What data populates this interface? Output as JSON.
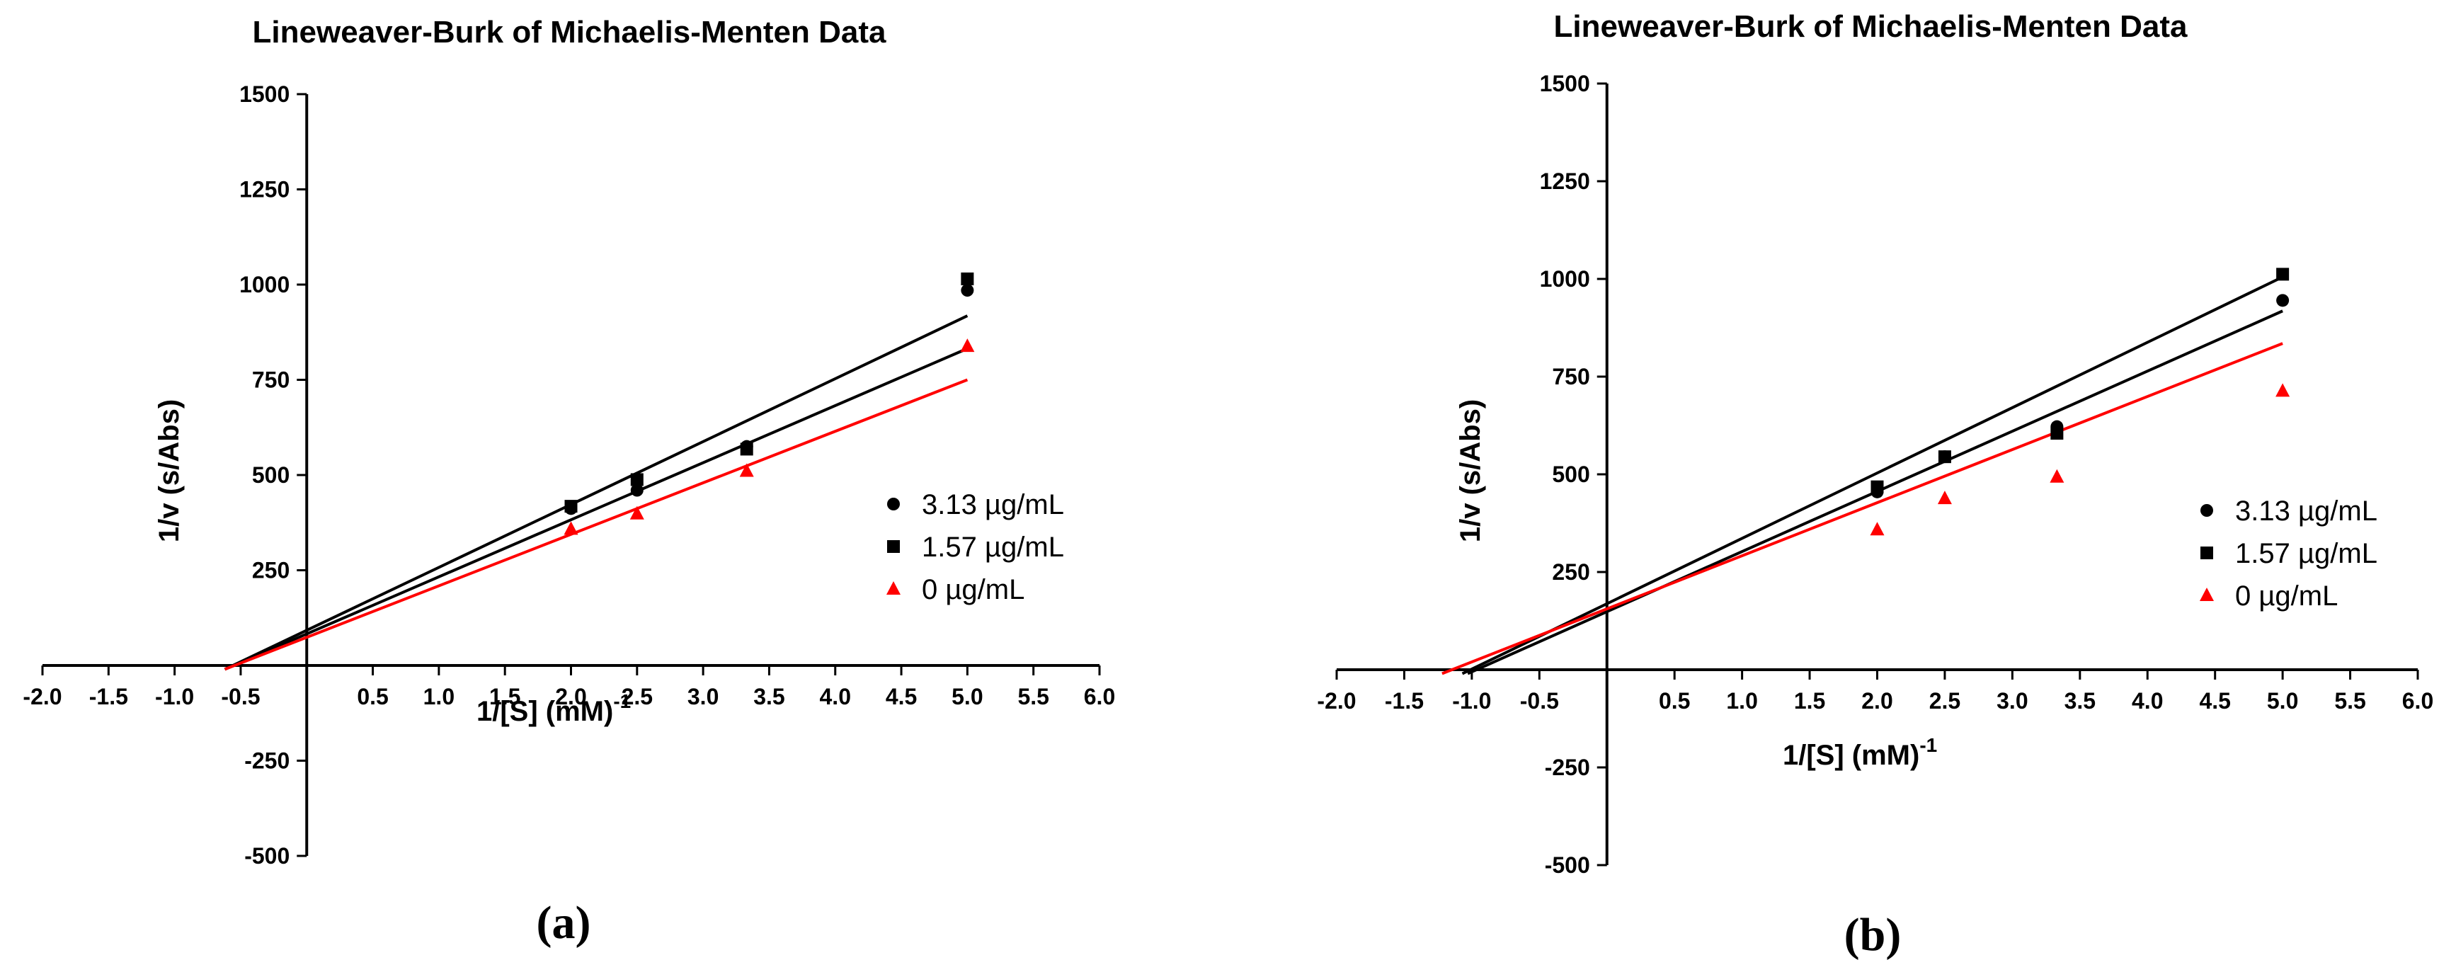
{
  "chart_data": [
    {
      "type": "scatter",
      "panel_label": "(a)",
      "title": "Lineweaver-Burk of Michaelis-Menten Data",
      "xlabel": "1/[S] (mM)",
      "xlabel_superscript": "-1",
      "ylabel": "1/v (s/Abs)",
      "xlim": [
        -2.0,
        6.0
      ],
      "ylim": [
        -500,
        1500
      ],
      "x_ticks": [
        "-2.0",
        "-1.5",
        "-1.0",
        "-0.5",
        "0.5",
        "1.0",
        "1.5",
        "2.0",
        "2.5",
        "3.0",
        "3.5",
        "4.0",
        "4.5",
        "5.0",
        "5.5",
        "6.0"
      ],
      "y_ticks": [
        "-500",
        "-250",
        "250",
        "500",
        "750",
        "1000",
        "1250",
        "1500"
      ],
      "legend_position": "right",
      "series": [
        {
          "name": "3.13 µg/mL",
          "marker": "circle",
          "color": "#000000",
          "x": [
            2.0,
            2.5,
            3.33,
            5.0
          ],
          "y": [
            412,
            460,
            575,
            985
          ],
          "fit": {
            "x": [
              -0.62,
              5.0
            ],
            "y": [
              -10,
              918
            ]
          }
        },
        {
          "name": "1.57 µg/mL",
          "marker": "square",
          "color": "#000000",
          "x": [
            2.0,
            2.5,
            3.33,
            5.0
          ],
          "y": [
            418,
            488,
            568,
            1015
          ],
          "fit": {
            "x": [
              -0.62,
              5.0
            ],
            "y": [
              -10,
              832
            ]
          }
        },
        {
          "name": "0 µg/mL",
          "marker": "triangle",
          "color": "#ff0000",
          "x": [
            2.0,
            2.5,
            3.33,
            5.0
          ],
          "y": [
            360,
            400,
            512,
            840
          ],
          "fit": {
            "x": [
              -0.62,
              5.0
            ],
            "y": [
              -10,
              750
            ]
          }
        }
      ]
    },
    {
      "type": "scatter",
      "panel_label": "(b)",
      "title": "Lineweaver-Burk of Michaelis-Menten Data",
      "xlabel": "1/[S] (mM)",
      "xlabel_superscript": "-1",
      "ylabel": "1/v (s/Abs)",
      "xlim": [
        -2.0,
        6.0
      ],
      "ylim": [
        -500,
        1500
      ],
      "x_ticks": [
        "-2.0",
        "-1.5",
        "-1.0",
        "-0.5",
        "0.5",
        "1.0",
        "1.5",
        "2.0",
        "2.5",
        "3.0",
        "3.5",
        "4.0",
        "4.5",
        "5.0",
        "5.5",
        "6.0"
      ],
      "y_ticks": [
        "-500",
        "-250",
        "250",
        "500",
        "750",
        "1000",
        "1250",
        "1500"
      ],
      "legend_position": "right",
      "series": [
        {
          "name": "3.13 µg/mL",
          "marker": "circle",
          "color": "#000000",
          "x": [
            2.0,
            2.5,
            3.33,
            5.0
          ],
          "y": [
            455,
            545,
            622,
            945
          ],
          "fit": {
            "x": [
              -1.03,
              5.0
            ],
            "y": [
              -10,
              918
            ]
          }
        },
        {
          "name": "1.57 µg/mL",
          "marker": "square",
          "color": "#000000",
          "x": [
            2.0,
            2.5,
            3.33,
            5.0
          ],
          "y": [
            468,
            545,
            605,
            1012
          ],
          "fit": {
            "x": [
              -1.07,
              5.0
            ],
            "y": [
              -10,
              1005
            ]
          }
        },
        {
          "name": "0 µg/mL",
          "marker": "triangle",
          "color": "#ff0000",
          "x": [
            2.0,
            2.5,
            3.33,
            5.0
          ],
          "y": [
            360,
            440,
            495,
            715
          ],
          "fit": {
            "x": [
              -1.22,
              5.0
            ],
            "y": [
              -10,
              835
            ]
          }
        }
      ]
    }
  ]
}
